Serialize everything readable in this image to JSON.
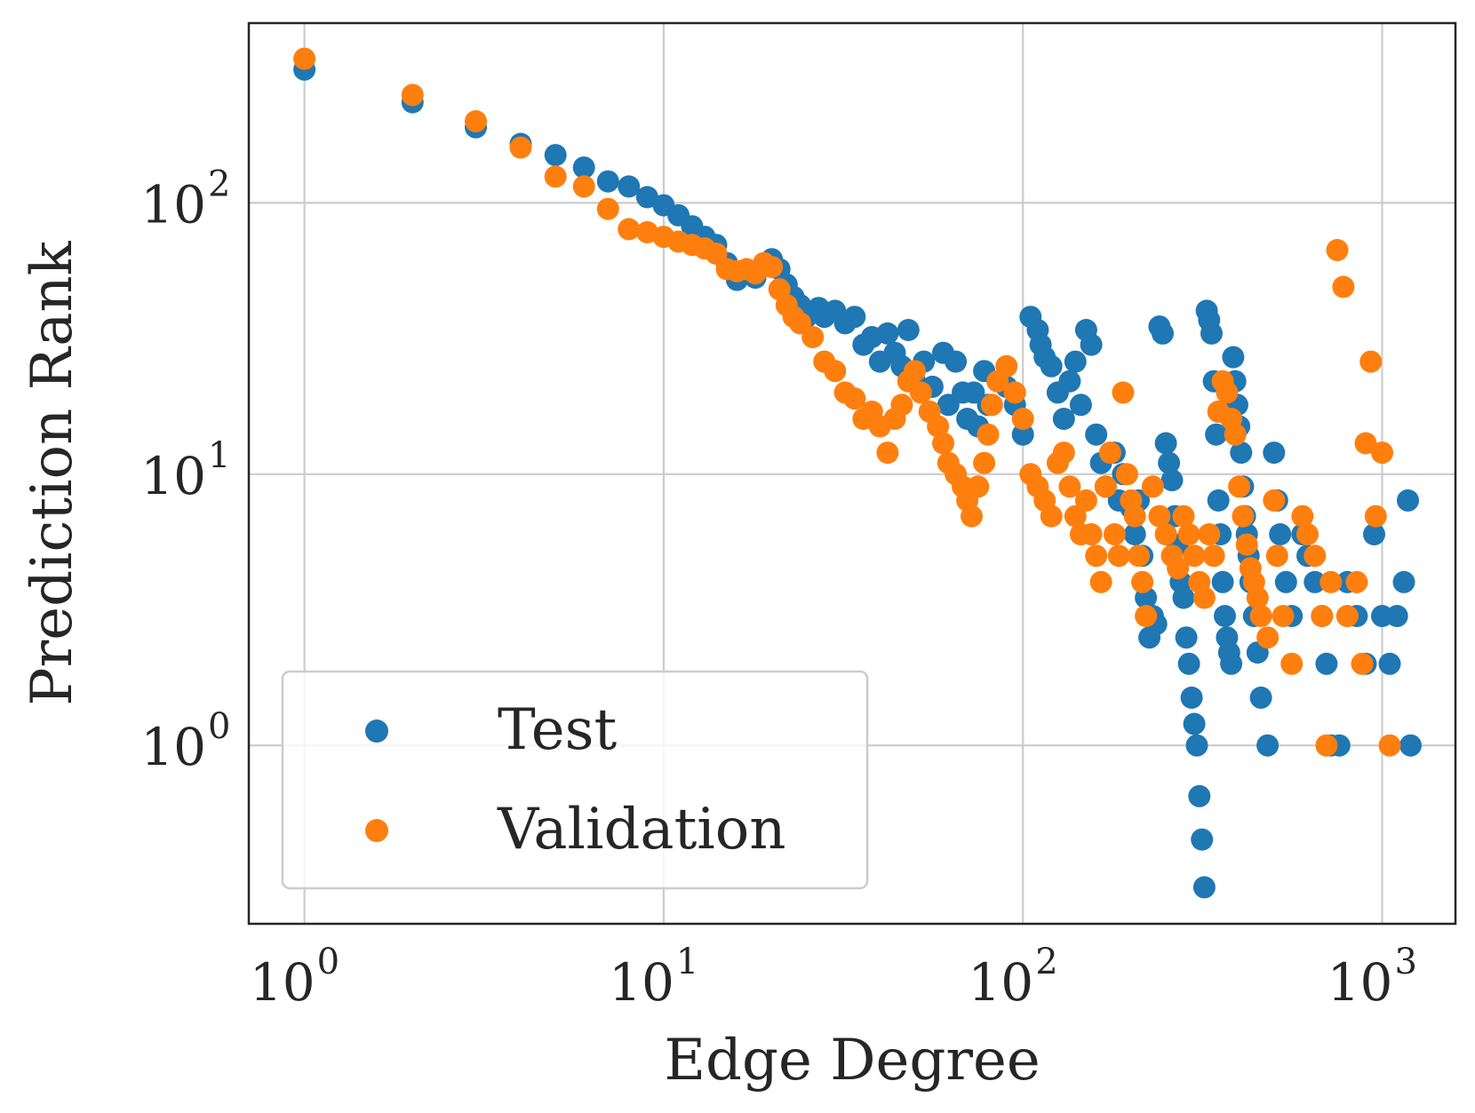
{
  "chart_data": {
    "type": "scatter",
    "title": "",
    "xlabel": "Edge Degree",
    "ylabel": "Prediction Rank",
    "xscale": "log",
    "yscale": "log",
    "xlim": [
      0.7,
      1600
    ],
    "ylim": [
      0.22,
      460
    ],
    "grid": true,
    "legend_position": "lower-left",
    "x_ticks": [
      {
        "base": "10",
        "exp": "0",
        "value": 1
      },
      {
        "base": "10",
        "exp": "1",
        "value": 10
      },
      {
        "base": "10",
        "exp": "2",
        "value": 100
      },
      {
        "base": "10",
        "exp": "3",
        "value": 1000
      }
    ],
    "y_ticks": [
      {
        "base": "10",
        "exp": "0",
        "value": 1
      },
      {
        "base": "10",
        "exp": "1",
        "value": 10
      },
      {
        "base": "10",
        "exp": "2",
        "value": 100
      }
    ],
    "series": [
      {
        "name": "Test",
        "color": "#1f77b4",
        "points": [
          [
            1,
            310
          ],
          [
            2,
            235
          ],
          [
            3,
            190
          ],
          [
            4,
            165
          ],
          [
            5,
            150
          ],
          [
            6,
            135
          ],
          [
            7,
            120
          ],
          [
            8,
            115
          ],
          [
            9,
            105
          ],
          [
            10,
            98
          ],
          [
            11,
            90
          ],
          [
            12,
            82
          ],
          [
            13,
            75
          ],
          [
            14,
            70
          ],
          [
            15,
            60
          ],
          [
            16,
            52
          ],
          [
            17,
            56
          ],
          [
            18,
            53
          ],
          [
            20,
            62
          ],
          [
            21,
            57
          ],
          [
            22,
            50
          ],
          [
            23,
            45
          ],
          [
            24,
            42
          ],
          [
            25,
            38
          ],
          [
            27,
            41
          ],
          [
            28,
            38
          ],
          [
            30,
            40
          ],
          [
            32,
            36
          ],
          [
            34,
            38
          ],
          [
            36,
            30
          ],
          [
            38,
            32
          ],
          [
            40,
            26
          ],
          [
            42,
            33
          ],
          [
            44,
            28
          ],
          [
            46,
            25
          ],
          [
            48,
            34
          ],
          [
            50,
            22
          ],
          [
            53,
            26
          ],
          [
            56,
            21
          ],
          [
            60,
            28
          ],
          [
            62,
            18
          ],
          [
            65,
            26
          ],
          [
            68,
            20
          ],
          [
            70,
            16
          ],
          [
            73,
            20
          ],
          [
            75,
            15
          ],
          [
            78,
            24
          ],
          [
            80,
            18
          ],
          [
            85,
            22
          ],
          [
            90,
            21
          ],
          [
            95,
            18
          ],
          [
            100,
            14
          ],
          [
            105,
            38
          ],
          [
            110,
            34
          ],
          [
            112,
            30
          ],
          [
            115,
            27
          ],
          [
            120,
            25
          ],
          [
            125,
            20
          ],
          [
            130,
            16
          ],
          [
            135,
            22
          ],
          [
            140,
            26
          ],
          [
            145,
            18
          ],
          [
            150,
            34
          ],
          [
            155,
            30
          ],
          [
            160,
            14
          ],
          [
            165,
            11
          ],
          [
            170,
            9
          ],
          [
            180,
            12
          ],
          [
            185,
            8
          ],
          [
            190,
            10
          ],
          [
            200,
            7.5
          ],
          [
            205,
            6
          ],
          [
            210,
            8
          ],
          [
            215,
            5
          ],
          [
            220,
            3.5
          ],
          [
            225,
            2.5
          ],
          [
            230,
            3
          ],
          [
            235,
            2.8
          ],
          [
            240,
            35
          ],
          [
            245,
            33
          ],
          [
            250,
            13
          ],
          [
            255,
            11
          ],
          [
            260,
            9.5
          ],
          [
            265,
            7
          ],
          [
            270,
            5.5
          ],
          [
            275,
            4
          ],
          [
            280,
            3.5
          ],
          [
            285,
            2.5
          ],
          [
            290,
            2
          ],
          [
            295,
            1.5
          ],
          [
            300,
            1.2
          ],
          [
            305,
            1
          ],
          [
            310,
            0.65
          ],
          [
            315,
            0.45
          ],
          [
            320,
            0.3
          ],
          [
            325,
            40
          ],
          [
            330,
            37
          ],
          [
            335,
            33
          ],
          [
            340,
            22
          ],
          [
            345,
            14
          ],
          [
            350,
            8
          ],
          [
            355,
            6
          ],
          [
            360,
            4
          ],
          [
            365,
            3
          ],
          [
            370,
            2.5
          ],
          [
            375,
            2.2
          ],
          [
            380,
            2
          ],
          [
            385,
            27
          ],
          [
            390,
            22
          ],
          [
            395,
            18
          ],
          [
            400,
            15
          ],
          [
            405,
            12
          ],
          [
            410,
            9
          ],
          [
            415,
            7
          ],
          [
            420,
            6
          ],
          [
            425,
            5
          ],
          [
            430,
            4
          ],
          [
            440,
            3
          ],
          [
            450,
            2.2
          ],
          [
            460,
            1.5
          ],
          [
            480,
            1
          ],
          [
            500,
            12
          ],
          [
            510,
            8
          ],
          [
            520,
            6
          ],
          [
            540,
            4
          ],
          [
            560,
            3
          ],
          [
            600,
            6
          ],
          [
            620,
            5
          ],
          [
            650,
            4
          ],
          [
            680,
            3
          ],
          [
            700,
            2
          ],
          [
            720,
            1
          ],
          [
            760,
            1
          ],
          [
            800,
            4
          ],
          [
            850,
            3
          ],
          [
            900,
            2
          ],
          [
            950,
            6
          ],
          [
            1000,
            3
          ],
          [
            1050,
            2
          ],
          [
            1100,
            3
          ],
          [
            1150,
            4
          ],
          [
            1180,
            8
          ],
          [
            1200,
            1
          ]
        ]
      },
      {
        "name": "Validation",
        "color": "#ff7f0e",
        "points": [
          [
            1,
            340
          ],
          [
            2,
            250
          ],
          [
            3,
            200
          ],
          [
            4,
            160
          ],
          [
            5,
            125
          ],
          [
            6,
            115
          ],
          [
            7,
            95
          ],
          [
            8,
            80
          ],
          [
            9,
            78
          ],
          [
            10,
            75
          ],
          [
            11,
            72
          ],
          [
            12,
            70
          ],
          [
            13,
            68
          ],
          [
            14,
            65
          ],
          [
            15,
            57
          ],
          [
            16,
            56
          ],
          [
            17,
            57
          ],
          [
            18,
            55
          ],
          [
            19,
            60
          ],
          [
            20,
            58
          ],
          [
            21,
            48
          ],
          [
            22,
            42
          ],
          [
            23,
            38
          ],
          [
            24,
            36
          ],
          [
            26,
            32
          ],
          [
            28,
            26
          ],
          [
            30,
            24
          ],
          [
            32,
            20
          ],
          [
            34,
            19
          ],
          [
            36,
            16
          ],
          [
            38,
            17
          ],
          [
            40,
            15
          ],
          [
            42,
            12
          ],
          [
            44,
            16
          ],
          [
            46,
            18
          ],
          [
            48,
            22
          ],
          [
            50,
            24
          ],
          [
            52,
            20
          ],
          [
            55,
            17
          ],
          [
            58,
            15
          ],
          [
            60,
            13
          ],
          [
            62,
            11
          ],
          [
            65,
            10
          ],
          [
            68,
            9
          ],
          [
            70,
            8
          ],
          [
            72,
            7
          ],
          [
            75,
            9
          ],
          [
            78,
            11
          ],
          [
            80,
            14
          ],
          [
            82,
            18
          ],
          [
            85,
            22
          ],
          [
            90,
            25
          ],
          [
            95,
            20
          ],
          [
            100,
            16
          ],
          [
            105,
            10
          ],
          [
            110,
            9
          ],
          [
            115,
            8
          ],
          [
            120,
            7
          ],
          [
            125,
            11
          ],
          [
            130,
            12
          ],
          [
            135,
            9
          ],
          [
            140,
            7
          ],
          [
            145,
            6
          ],
          [
            150,
            8
          ],
          [
            155,
            6
          ],
          [
            160,
            5
          ],
          [
            165,
            4
          ],
          [
            170,
            9
          ],
          [
            175,
            12
          ],
          [
            180,
            6
          ],
          [
            185,
            5
          ],
          [
            190,
            20
          ],
          [
            195,
            10
          ],
          [
            200,
            8
          ],
          [
            205,
            7
          ],
          [
            210,
            5
          ],
          [
            215,
            4
          ],
          [
            220,
            3
          ],
          [
            230,
            9
          ],
          [
            240,
            7
          ],
          [
            250,
            6
          ],
          [
            260,
            5
          ],
          [
            270,
            4.5
          ],
          [
            280,
            7
          ],
          [
            290,
            6
          ],
          [
            300,
            5
          ],
          [
            310,
            4
          ],
          [
            320,
            3.5
          ],
          [
            330,
            6
          ],
          [
            340,
            5
          ],
          [
            350,
            17
          ],
          [
            360,
            22
          ],
          [
            370,
            20
          ],
          [
            380,
            16
          ],
          [
            390,
            14
          ],
          [
            400,
            9
          ],
          [
            410,
            7
          ],
          [
            420,
            5.5
          ],
          [
            430,
            4.5
          ],
          [
            440,
            4
          ],
          [
            450,
            3.5
          ],
          [
            460,
            3
          ],
          [
            480,
            2.5
          ],
          [
            500,
            8
          ],
          [
            510,
            5
          ],
          [
            530,
            3
          ],
          [
            560,
            2
          ],
          [
            600,
            7
          ],
          [
            620,
            6
          ],
          [
            650,
            5
          ],
          [
            680,
            3
          ],
          [
            700,
            1
          ],
          [
            720,
            4
          ],
          [
            750,
            67
          ],
          [
            780,
            49
          ],
          [
            800,
            3
          ],
          [
            850,
            4
          ],
          [
            880,
            2
          ],
          [
            900,
            13
          ],
          [
            930,
            26
          ],
          [
            960,
            7
          ],
          [
            1000,
            12
          ],
          [
            1050,
            1
          ]
        ]
      }
    ]
  }
}
